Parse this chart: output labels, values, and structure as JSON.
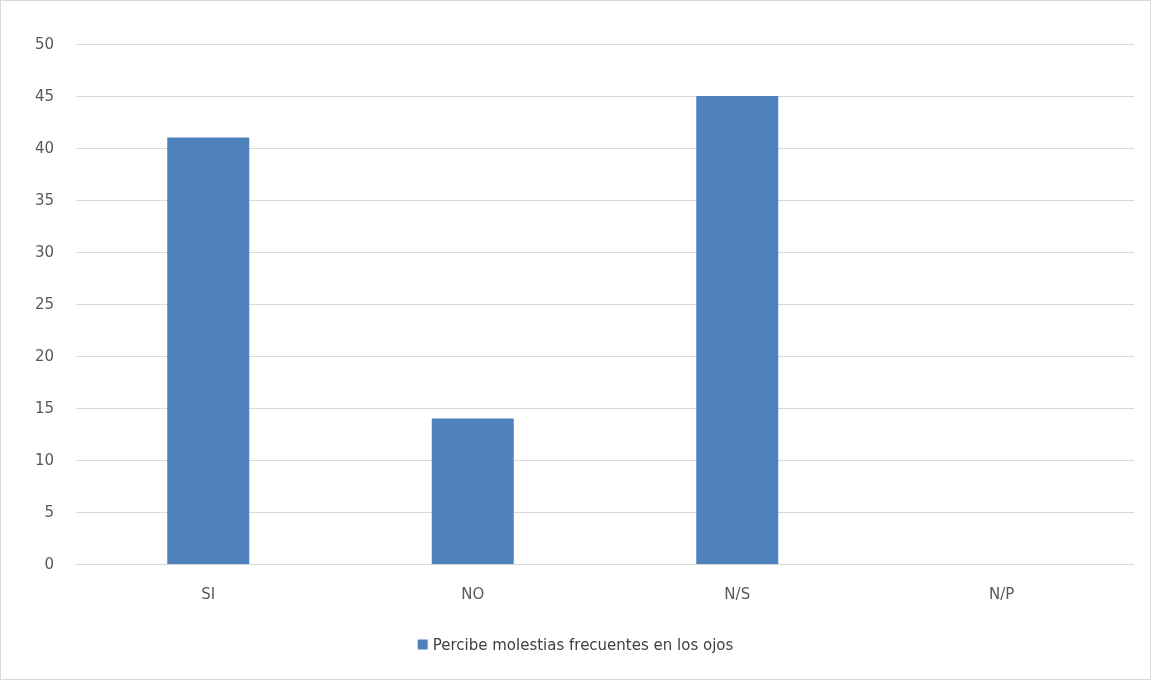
{
  "chart_data": {
    "type": "bar",
    "categories": [
      "SI",
      "NO",
      "N/S",
      "N/P"
    ],
    "series": [
      {
        "name": "Percibe molestias frecuentes en los ojos",
        "color": "#4f81bd",
        "values": [
          41,
          14,
          45,
          0
        ]
      }
    ],
    "ylim": [
      0,
      50
    ],
    "yticks": [
      0,
      5,
      10,
      15,
      20,
      25,
      30,
      35,
      40,
      45,
      50
    ],
    "grid": "y",
    "legend": "bottom"
  }
}
